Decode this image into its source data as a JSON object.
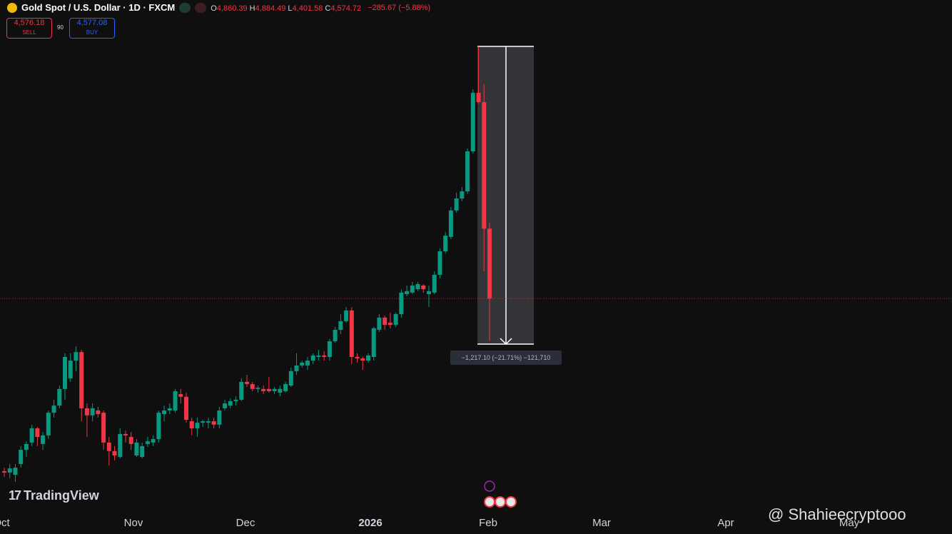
{
  "header": {
    "title": "Gold Spot / U.S. Dollar · 1D · FXCM",
    "ohlc": [
      {
        "key": "O",
        "value": "4,860.39"
      },
      {
        "key": "H",
        "value": "4,884.49"
      },
      {
        "key": "L",
        "value": "4,401.58"
      },
      {
        "key": "C",
        "value": "4,574.72"
      }
    ],
    "change": "−285.67 (−5.88%)",
    "sell_price": "4,576.18",
    "sell": "SELL",
    "spread": "90",
    "buy_price": "4,577.08",
    "buy": "BUY"
  },
  "chart_data": {
    "type": "candlestick",
    "open": [
      3869,
      3863,
      3854,
      3898,
      3956,
      3986,
      4044,
      3980,
      4015,
      4108,
      4137,
      4205,
      4248,
      4321,
      4356,
      4126,
      4097,
      4117,
      4108,
      3986,
      3951,
      3927,
      4021,
      4009,
      3933,
      3927,
      3980,
      3986,
      4000,
      4102,
      4117,
      4117,
      4184,
      4173,
      4073,
      4044,
      4067,
      4067,
      4073,
      4059,
      4126,
      4137,
      4155,
      4161,
      4234,
      4225,
      4205,
      4205,
      4205,
      4196,
      4190,
      4196,
      4219,
      4278,
      4301,
      4301,
      4321,
      4336,
      4342,
      4336,
      4400,
      4447,
      4482,
      4526,
      4336,
      4330,
      4321,
      4336,
      4447,
      4497,
      4476,
      4467,
      4511,
      4593,
      4599,
      4613,
      4628,
      4593,
      4599,
      4672,
      4768,
      4827,
      4935,
      4984,
      5013,
      5177,
      5416,
      5378,
      4860.39
    ],
    "high": [
      3883,
      3898,
      3898,
      3971,
      3991,
      4059,
      4050,
      4029,
      4117,
      4161,
      4219,
      4351,
      4351,
      4380,
      4365,
      4146,
      4146,
      4132,
      4117,
      4009,
      3971,
      4044,
      4035,
      4029,
      4000,
      3986,
      4009,
      4015,
      4117,
      4137,
      4146,
      4205,
      4205,
      4190,
      4088,
      4088,
      4079,
      4088,
      4088,
      4132,
      4161,
      4167,
      4175,
      4248,
      4263,
      4234,
      4219,
      4219,
      4254,
      4213,
      4219,
      4234,
      4292,
      4351,
      4321,
      4336,
      4351,
      4365,
      4359,
      4409,
      4459,
      4511,
      4540,
      4540,
      4351,
      4336,
      4351,
      4459,
      4511,
      4505,
      4517,
      4517,
      4613,
      4628,
      4643,
      4643,
      4634,
      4628,
      4686,
      4780,
      4847,
      4949,
      5008,
      5031,
      5189,
      5431,
      5606,
      5451,
      4884.49
    ],
    "low": [
      3845,
      3840,
      3825,
      3883,
      3927,
      3971,
      3971,
      3956,
      4000,
      4088,
      4126,
      4161,
      4234,
      4278,
      4073,
      4009,
      4073,
      4088,
      3956,
      3892,
      3913,
      3921,
      3986,
      3956,
      3927,
      3921,
      3968,
      3971,
      3986,
      4073,
      4102,
      4108,
      4146,
      4067,
      4015,
      4009,
      4050,
      4044,
      4044,
      4044,
      4117,
      4126,
      4137,
      4155,
      4213,
      4196,
      4190,
      4184,
      4190,
      4184,
      4175,
      4190,
      4213,
      4263,
      4292,
      4283,
      4307,
      4321,
      4321,
      4321,
      4394,
      4429,
      4476,
      4307,
      4313,
      4283,
      4313,
      4321,
      4438,
      4447,
      4453,
      4459,
      4497,
      4584,
      4593,
      4605,
      4599,
      4540,
      4593,
      4657,
      4759,
      4818,
      4926,
      4973,
      5002,
      5168,
      5373,
      4686,
      4401.58
    ],
    "close": [
      3863,
      3880,
      3883,
      3956,
      3980,
      4044,
      4009,
      4015,
      4108,
      4137,
      4205,
      4336,
      4321,
      4356,
      4126,
      4097,
      4126,
      4102,
      3986,
      3951,
      3933,
      4021,
      4015,
      3980,
      3986,
      3971,
      3991,
      4000,
      4108,
      4117,
      4126,
      4196,
      4173,
      4079,
      4044,
      4067,
      4073,
      4073,
      4059,
      4117,
      4146,
      4155,
      4161,
      4234,
      4225,
      4205,
      4210,
      4196,
      4196,
      4205,
      4205,
      4225,
      4278,
      4301,
      4313,
      4321,
      4342,
      4342,
      4336,
      4400,
      4447,
      4482,
      4526,
      4336,
      4330,
      4321,
      4342,
      4453,
      4497,
      4467,
      4467,
      4511,
      4599,
      4605,
      4628,
      4634,
      4613,
      4605,
      4672,
      4768,
      4832,
      4935,
      4984,
      5013,
      5177,
      5416,
      5378,
      4860.39,
      4574.72
    ],
    "x_labels": [
      "Oct",
      "Nov",
      "Dec",
      "2026",
      "Feb",
      "Mar",
      "Apr",
      "May"
    ],
    "measure_label": "−1,217.10 (−21.71%) −121,710",
    "colors": {
      "up": "#089981",
      "down": "#f23645"
    }
  },
  "watermark": "TradingView",
  "credit": "@ Shahieecryptooo"
}
